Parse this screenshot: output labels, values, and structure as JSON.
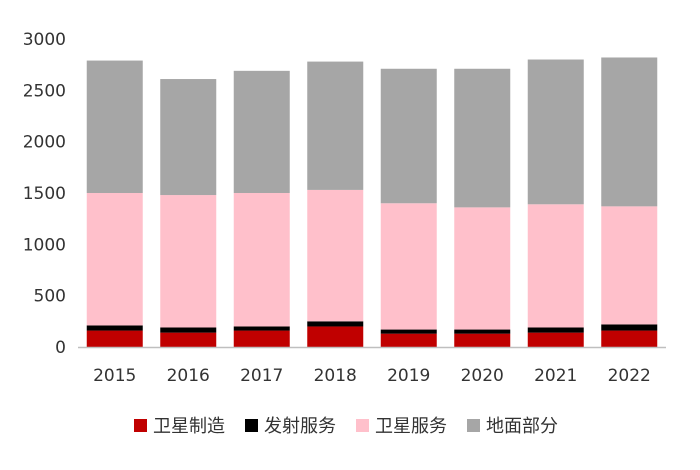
{
  "chart_data": {
    "type": "bar",
    "stacked": true,
    "title": "",
    "xlabel": "",
    "ylabel": "",
    "categories": [
      "2015",
      "2016",
      "2017",
      "2018",
      "2019",
      "2020",
      "2021",
      "2022"
    ],
    "ylim": [
      0,
      3000
    ],
    "yticks": [
      "0",
      "500",
      "1000",
      "1500",
      "2000",
      "2500",
      "3000"
    ],
    "grid": false,
    "legend_position": "bottom",
    "series": [
      {
        "name": "卫星制造",
        "color": "#c00000",
        "values": [
          160,
          140,
          160,
          200,
          130,
          130,
          140,
          160
        ]
      },
      {
        "name": "发射服务",
        "color": "#000000",
        "values": [
          50,
          50,
          40,
          50,
          40,
          40,
          50,
          60
        ]
      },
      {
        "name": "卫星服务",
        "color": "#ffc0cb",
        "values": [
          1290,
          1290,
          1300,
          1280,
          1230,
          1190,
          1200,
          1150
        ]
      },
      {
        "name": "地面部分",
        "color": "#a6a6a6",
        "values": [
          1290,
          1130,
          1190,
          1250,
          1310,
          1350,
          1410,
          1450
        ]
      }
    ]
  }
}
